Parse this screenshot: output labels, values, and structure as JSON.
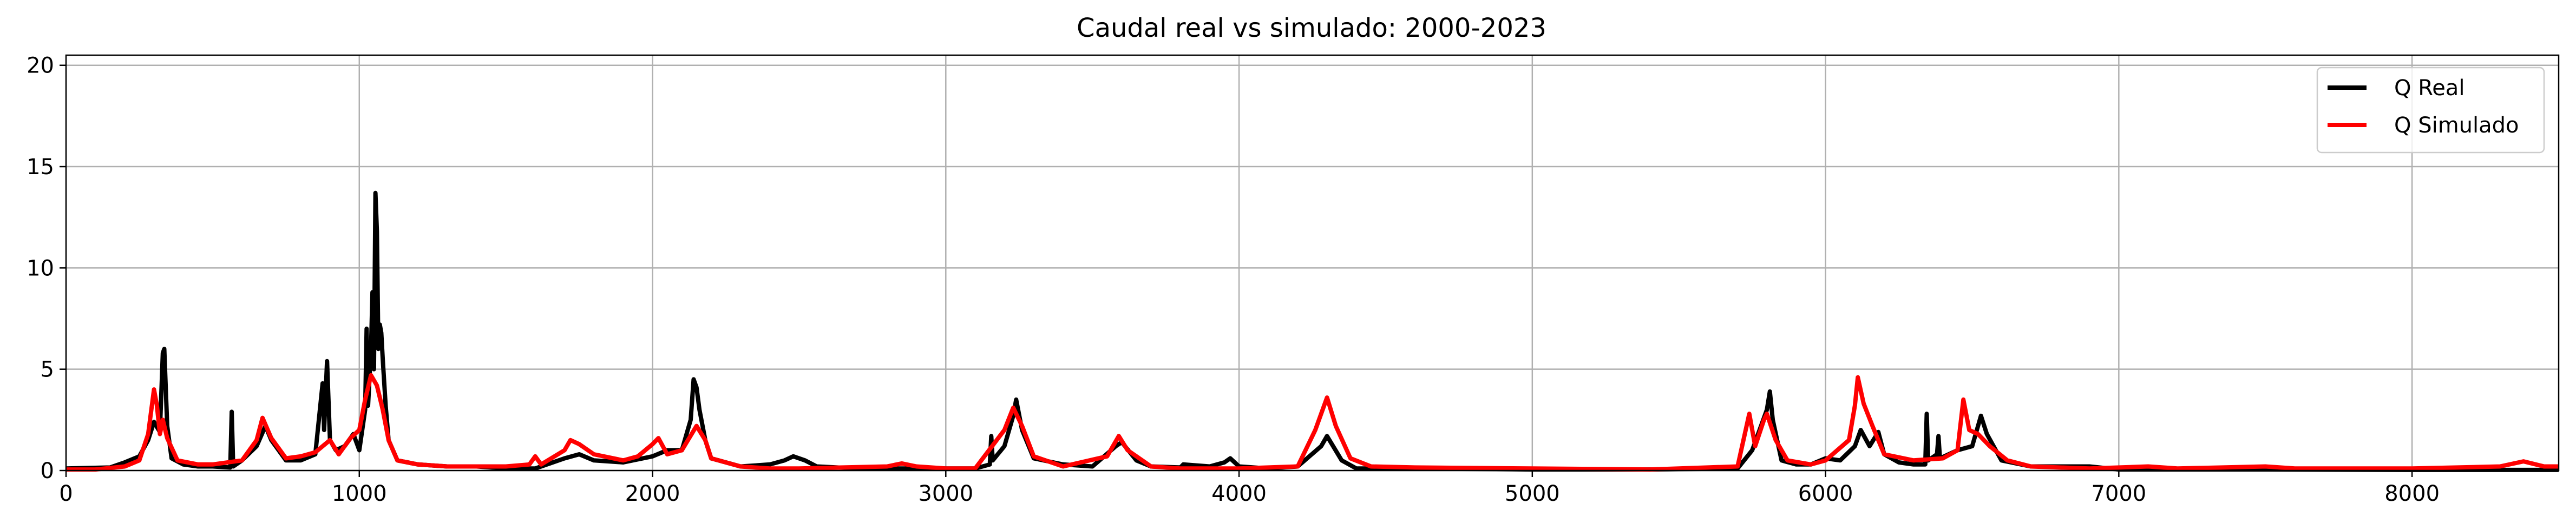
{
  "chart_data": {
    "type": "line",
    "title": "Caudal real vs simulado: 2000-2023",
    "xlabel": "",
    "ylabel": "",
    "xlim": [
      0,
      8500
    ],
    "ylim": [
      0,
      20.5
    ],
    "xticks": [
      0,
      1000,
      2000,
      3000,
      4000,
      5000,
      6000,
      7000,
      8000
    ],
    "yticks": [
      0,
      5,
      10,
      15,
      20
    ],
    "grid": true,
    "legend_position": "top-right",
    "series": [
      {
        "name": "Q Real",
        "color": "#000000",
        "points": [
          [
            0,
            0.1
          ],
          [
            150,
            0.15
          ],
          [
            200,
            0.4
          ],
          [
            250,
            0.7
          ],
          [
            280,
            1.5
          ],
          [
            300,
            2.4
          ],
          [
            320,
            1.9
          ],
          [
            330,
            5.8
          ],
          [
            335,
            6.0
          ],
          [
            345,
            2.2
          ],
          [
            360,
            0.6
          ],
          [
            400,
            0.3
          ],
          [
            450,
            0.2
          ],
          [
            500,
            0.2
          ],
          [
            560,
            0.15
          ],
          [
            565,
            2.9
          ],
          [
            570,
            0.2
          ],
          [
            600,
            0.5
          ],
          [
            650,
            1.2
          ],
          [
            680,
            2.2
          ],
          [
            700,
            1.5
          ],
          [
            750,
            0.5
          ],
          [
            800,
            0.5
          ],
          [
            850,
            0.8
          ],
          [
            875,
            4.3
          ],
          [
            880,
            2.0
          ],
          [
            890,
            5.4
          ],
          [
            900,
            1.5
          ],
          [
            920,
            1.0
          ],
          [
            950,
            1.2
          ],
          [
            980,
            1.8
          ],
          [
            1000,
            1.0
          ],
          [
            1020,
            3.0
          ],
          [
            1025,
            7.0
          ],
          [
            1030,
            3.2
          ],
          [
            1040,
            6.0
          ],
          [
            1045,
            8.8
          ],
          [
            1050,
            5.0
          ],
          [
            1055,
            13.7
          ],
          [
            1060,
            11.8
          ],
          [
            1065,
            6.0
          ],
          [
            1070,
            7.2
          ],
          [
            1075,
            6.8
          ],
          [
            1080,
            5.5
          ],
          [
            1090,
            3.2
          ],
          [
            1100,
            1.5
          ],
          [
            1130,
            0.5
          ],
          [
            1200,
            0.3
          ],
          [
            1300,
            0.2
          ],
          [
            1400,
            0.2
          ],
          [
            1500,
            0.1
          ],
          [
            1600,
            0.1
          ],
          [
            1700,
            0.6
          ],
          [
            1750,
            0.8
          ],
          [
            1800,
            0.5
          ],
          [
            1900,
            0.4
          ],
          [
            2000,
            0.7
          ],
          [
            2050,
            1.0
          ],
          [
            2100,
            1.0
          ],
          [
            2130,
            2.5
          ],
          [
            2140,
            4.5
          ],
          [
            2150,
            4.1
          ],
          [
            2160,
            3.0
          ],
          [
            2180,
            1.5
          ],
          [
            2200,
            0.6
          ],
          [
            2300,
            0.2
          ],
          [
            2400,
            0.3
          ],
          [
            2450,
            0.5
          ],
          [
            2480,
            0.7
          ],
          [
            2520,
            0.5
          ],
          [
            2560,
            0.2
          ],
          [
            2700,
            0.1
          ],
          [
            2800,
            0.1
          ],
          [
            3000,
            0.1
          ],
          [
            3100,
            0.1
          ],
          [
            3150,
            0.3
          ],
          [
            3155,
            1.7
          ],
          [
            3160,
            0.5
          ],
          [
            3200,
            1.2
          ],
          [
            3230,
            2.7
          ],
          [
            3240,
            3.5
          ],
          [
            3260,
            2.0
          ],
          [
            3300,
            0.6
          ],
          [
            3400,
            0.3
          ],
          [
            3500,
            0.2
          ],
          [
            3580,
            1.2
          ],
          [
            3600,
            1.4
          ],
          [
            3650,
            0.5
          ],
          [
            3700,
            0.2
          ],
          [
            3800,
            0.15
          ],
          [
            3810,
            0.3
          ],
          [
            3900,
            0.2
          ],
          [
            3950,
            0.4
          ],
          [
            3970,
            0.6
          ],
          [
            4000,
            0.2
          ],
          [
            4100,
            0.1
          ],
          [
            4200,
            0.2
          ],
          [
            4280,
            1.2
          ],
          [
            4300,
            1.7
          ],
          [
            4350,
            0.5
          ],
          [
            4400,
            0.1
          ],
          [
            4600,
            0.1
          ],
          [
            5000,
            0.05
          ],
          [
            5400,
            0.05
          ],
          [
            5700,
            0.1
          ],
          [
            5750,
            1.0
          ],
          [
            5780,
            2.2
          ],
          [
            5800,
            3.0
          ],
          [
            5810,
            3.9
          ],
          [
            5820,
            2.5
          ],
          [
            5850,
            0.5
          ],
          [
            5900,
            0.3
          ],
          [
            5950,
            0.3
          ],
          [
            6000,
            0.6
          ],
          [
            6050,
            0.5
          ],
          [
            6100,
            1.2
          ],
          [
            6120,
            2.0
          ],
          [
            6150,
            1.2
          ],
          [
            6180,
            1.9
          ],
          [
            6200,
            0.8
          ],
          [
            6250,
            0.4
          ],
          [
            6300,
            0.3
          ],
          [
            6340,
            0.3
          ],
          [
            6345,
            2.8
          ],
          [
            6350,
            0.5
          ],
          [
            6380,
            0.8
          ],
          [
            6385,
            1.7
          ],
          [
            6390,
            0.6
          ],
          [
            6450,
            1.0
          ],
          [
            6500,
            1.2
          ],
          [
            6530,
            2.7
          ],
          [
            6550,
            1.8
          ],
          [
            6600,
            0.5
          ],
          [
            6700,
            0.2
          ],
          [
            6800,
            0.2
          ],
          [
            6900,
            0.2
          ],
          [
            7000,
            0.05
          ],
          [
            7500,
            0.05
          ],
          [
            8000,
            0.03
          ],
          [
            8500,
            0.03
          ]
        ]
      },
      {
        "name": "Q Simulado",
        "color": "#ff0000",
        "points": [
          [
            0,
            0.05
          ],
          [
            100,
            0.05
          ],
          [
            200,
            0.2
          ],
          [
            250,
            0.5
          ],
          [
            280,
            1.8
          ],
          [
            300,
            4.0
          ],
          [
            310,
            3.2
          ],
          [
            320,
            1.8
          ],
          [
            330,
            2.5
          ],
          [
            345,
            1.6
          ],
          [
            380,
            0.5
          ],
          [
            450,
            0.3
          ],
          [
            500,
            0.3
          ],
          [
            600,
            0.5
          ],
          [
            650,
            1.5
          ],
          [
            670,
            2.6
          ],
          [
            700,
            1.6
          ],
          [
            750,
            0.6
          ],
          [
            800,
            0.7
          ],
          [
            850,
            0.9
          ],
          [
            900,
            1.5
          ],
          [
            930,
            0.8
          ],
          [
            970,
            1.6
          ],
          [
            1000,
            2.0
          ],
          [
            1020,
            3.5
          ],
          [
            1040,
            4.7
          ],
          [
            1060,
            4.2
          ],
          [
            1080,
            3.0
          ],
          [
            1100,
            1.5
          ],
          [
            1130,
            0.5
          ],
          [
            1200,
            0.3
          ],
          [
            1300,
            0.2
          ],
          [
            1400,
            0.2
          ],
          [
            1500,
            0.2
          ],
          [
            1580,
            0.3
          ],
          [
            1600,
            0.7
          ],
          [
            1620,
            0.3
          ],
          [
            1700,
            1.0
          ],
          [
            1720,
            1.5
          ],
          [
            1750,
            1.3
          ],
          [
            1800,
            0.8
          ],
          [
            1900,
            0.5
          ],
          [
            1950,
            0.7
          ],
          [
            2000,
            1.3
          ],
          [
            2020,
            1.6
          ],
          [
            2050,
            0.8
          ],
          [
            2100,
            1.0
          ],
          [
            2150,
            2.2
          ],
          [
            2180,
            1.5
          ],
          [
            2200,
            0.6
          ],
          [
            2300,
            0.2
          ],
          [
            2400,
            0.1
          ],
          [
            2500,
            0.1
          ],
          [
            2800,
            0.2
          ],
          [
            2850,
            0.35
          ],
          [
            2900,
            0.2
          ],
          [
            3000,
            0.1
          ],
          [
            3100,
            0.1
          ],
          [
            3200,
            2.0
          ],
          [
            3230,
            3.1
          ],
          [
            3260,
            2.2
          ],
          [
            3300,
            0.7
          ],
          [
            3400,
            0.2
          ],
          [
            3550,
            0.7
          ],
          [
            3590,
            1.7
          ],
          [
            3620,
            1.0
          ],
          [
            3700,
            0.2
          ],
          [
            3800,
            0.1
          ],
          [
            4000,
            0.1
          ],
          [
            4200,
            0.2
          ],
          [
            4260,
            2.0
          ],
          [
            4300,
            3.6
          ],
          [
            4330,
            2.2
          ],
          [
            4380,
            0.6
          ],
          [
            4450,
            0.2
          ],
          [
            4600,
            0.15
          ],
          [
            5000,
            0.1
          ],
          [
            5400,
            0.05
          ],
          [
            5700,
            0.2
          ],
          [
            5740,
            2.8
          ],
          [
            5760,
            1.2
          ],
          [
            5790,
            2.5
          ],
          [
            5800,
            2.8
          ],
          [
            5830,
            1.5
          ],
          [
            5870,
            0.5
          ],
          [
            5950,
            0.3
          ],
          [
            6000,
            0.5
          ],
          [
            6080,
            1.5
          ],
          [
            6100,
            3.2
          ],
          [
            6110,
            4.6
          ],
          [
            6130,
            3.3
          ],
          [
            6160,
            2.2
          ],
          [
            6200,
            0.8
          ],
          [
            6300,
            0.5
          ],
          [
            6400,
            0.6
          ],
          [
            6450,
            1.0
          ],
          [
            6470,
            3.5
          ],
          [
            6490,
            2.0
          ],
          [
            6520,
            1.8
          ],
          [
            6560,
            1.2
          ],
          [
            6620,
            0.5
          ],
          [
            6700,
            0.2
          ],
          [
            6900,
            0.1
          ],
          [
            7100,
            0.2
          ],
          [
            7200,
            0.1
          ],
          [
            7500,
            0.2
          ],
          [
            7600,
            0.1
          ],
          [
            8000,
            0.1
          ],
          [
            8300,
            0.2
          ],
          [
            8380,
            0.45
          ],
          [
            8450,
            0.2
          ],
          [
            8500,
            0.2
          ]
        ]
      }
    ]
  }
}
